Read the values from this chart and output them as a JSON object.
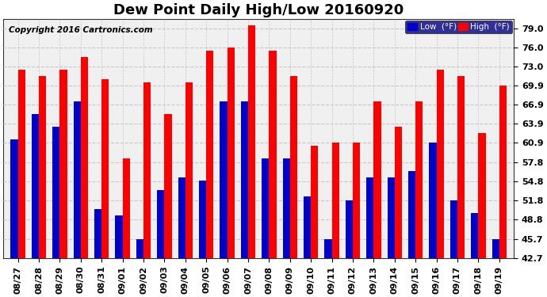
{
  "title": "Dew Point Daily High/Low 20160920",
  "copyright": "Copyright 2016 Cartronics.com",
  "dates": [
    "08/27",
    "08/28",
    "08/29",
    "08/30",
    "08/31",
    "09/01",
    "09/02",
    "09/03",
    "09/04",
    "09/05",
    "09/06",
    "09/07",
    "09/08",
    "09/09",
    "09/10",
    "09/11",
    "09/12",
    "09/13",
    "09/14",
    "09/15",
    "09/16",
    "09/17",
    "09/18",
    "09/19"
  ],
  "high": [
    72.5,
    71.5,
    72.5,
    74.5,
    71.0,
    58.5,
    70.5,
    65.5,
    70.5,
    75.5,
    76.0,
    79.5,
    75.5,
    71.5,
    60.5,
    61.0,
    61.0,
    67.5,
    63.5,
    67.5,
    72.5,
    71.5,
    62.5,
    70.0
  ],
  "low": [
    61.5,
    65.5,
    63.5,
    67.5,
    50.5,
    49.5,
    45.7,
    53.5,
    55.5,
    55.0,
    67.5,
    67.5,
    58.5,
    58.5,
    52.5,
    45.7,
    51.8,
    55.5,
    55.5,
    56.5,
    61.0,
    51.8,
    49.8,
    45.7
  ],
  "high_color": "#ff0000",
  "low_color": "#0000cc",
  "bg_color": "#ffffff",
  "plot_bg_color": "#f0f0f0",
  "grid_color": "#c8c8c8",
  "ylim_min": 42.7,
  "ylim_max": 80.5,
  "yticks": [
    42.7,
    45.7,
    48.8,
    51.8,
    54.8,
    57.8,
    60.9,
    63.9,
    66.9,
    69.9,
    73.0,
    76.0,
    79.0
  ],
  "legend_low_label": "Low  (°F)",
  "legend_high_label": "High  (°F)",
  "title_fontsize": 13,
  "tick_fontsize": 8,
  "copyright_fontsize": 7.5,
  "bar_width": 0.35
}
